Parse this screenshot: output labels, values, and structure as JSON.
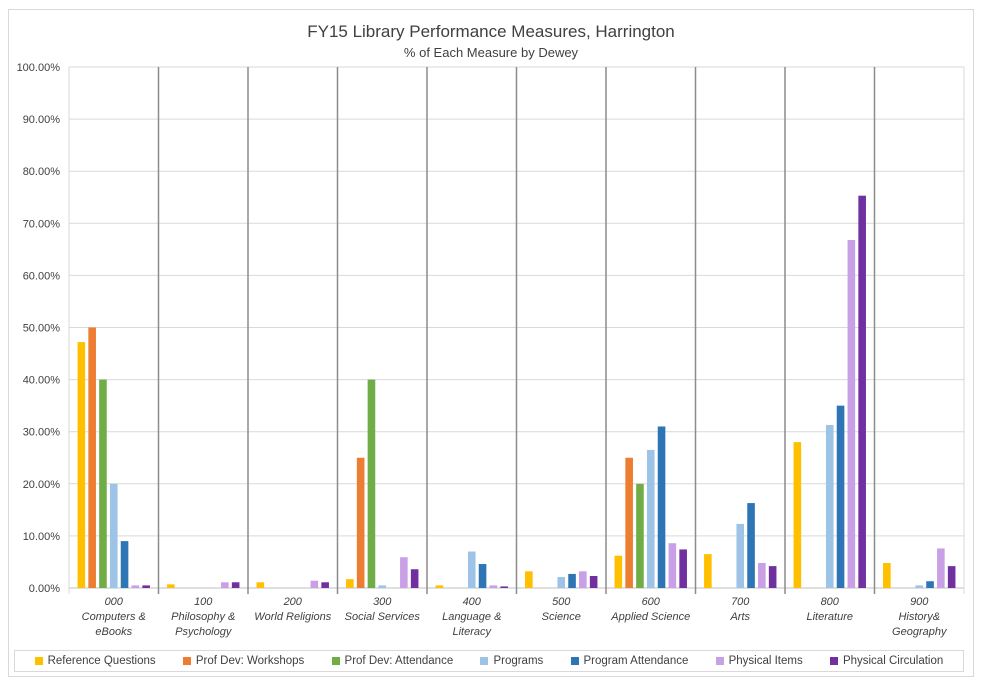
{
  "chart_data": {
    "type": "bar",
    "title": "FY15 Library Performance Measures, Harrington",
    "subtitle": "% of Each Measure by Dewey",
    "categories": [
      {
        "code": "000",
        "name": "Computers &",
        "name2": "eBooks"
      },
      {
        "code": "100",
        "name": "Philosophy &",
        "name2": "Psychology"
      },
      {
        "code": "200",
        "name": "World Religions",
        "name2": ""
      },
      {
        "code": "300",
        "name": "Social Services",
        "name2": ""
      },
      {
        "code": "400",
        "name": "Language &",
        "name2": "Literacy"
      },
      {
        "code": "500",
        "name": "Science",
        "name2": ""
      },
      {
        "code": "600",
        "name": "Applied Science",
        "name2": ""
      },
      {
        "code": "700",
        "name": "Arts",
        "name2": ""
      },
      {
        "code": "800",
        "name": "Literature",
        "name2": ""
      },
      {
        "code": "900",
        "name": "History&",
        "name2": "Geography"
      }
    ],
    "ylim": [
      0,
      100
    ],
    "yticks": [
      "0.00%",
      "10.00%",
      "20.00%",
      "30.00%",
      "40.00%",
      "50.00%",
      "60.00%",
      "70.00%",
      "80.00%",
      "90.00%",
      "100.00%"
    ],
    "grid": true,
    "legend_position": "bottom",
    "series": [
      {
        "name": "Reference Questions",
        "color": "#FFC000",
        "values": [
          47.2,
          0.7,
          1.1,
          1.7,
          0.5,
          3.2,
          6.2,
          6.5,
          28.0,
          4.8
        ]
      },
      {
        "name": "Prof Dev: Workshops",
        "color": "#ED7D31",
        "values": [
          50.0,
          0,
          0,
          25.0,
          0,
          0,
          25.0,
          0,
          0,
          0
        ]
      },
      {
        "name": "Prof Dev: Attendance",
        "color": "#70AD47",
        "values": [
          40.0,
          0,
          0,
          40.0,
          0,
          0,
          20.0,
          0,
          0,
          0
        ]
      },
      {
        "name": "Programs",
        "color": "#9DC3E6",
        "values": [
          20.0,
          0,
          0,
          0.5,
          7.0,
          2.1,
          26.5,
          12.3,
          31.3,
          0.5
        ]
      },
      {
        "name": "Program Attendance",
        "color": "#2E75B6",
        "values": [
          9.0,
          0,
          0,
          0,
          4.6,
          2.7,
          31.0,
          16.3,
          35.0,
          1.3
        ]
      },
      {
        "name": "Physical Items",
        "color": "#C9A0E6",
        "values": [
          0.5,
          1.1,
          1.4,
          5.9,
          0.5,
          3.2,
          8.6,
          4.8,
          66.8,
          7.6
        ]
      },
      {
        "name": "Physical Circulation",
        "color": "#7030A0",
        "values": [
          0.5,
          1.1,
          1.1,
          3.6,
          0.3,
          2.3,
          7.4,
          4.2,
          75.3,
          4.2
        ]
      }
    ]
  }
}
